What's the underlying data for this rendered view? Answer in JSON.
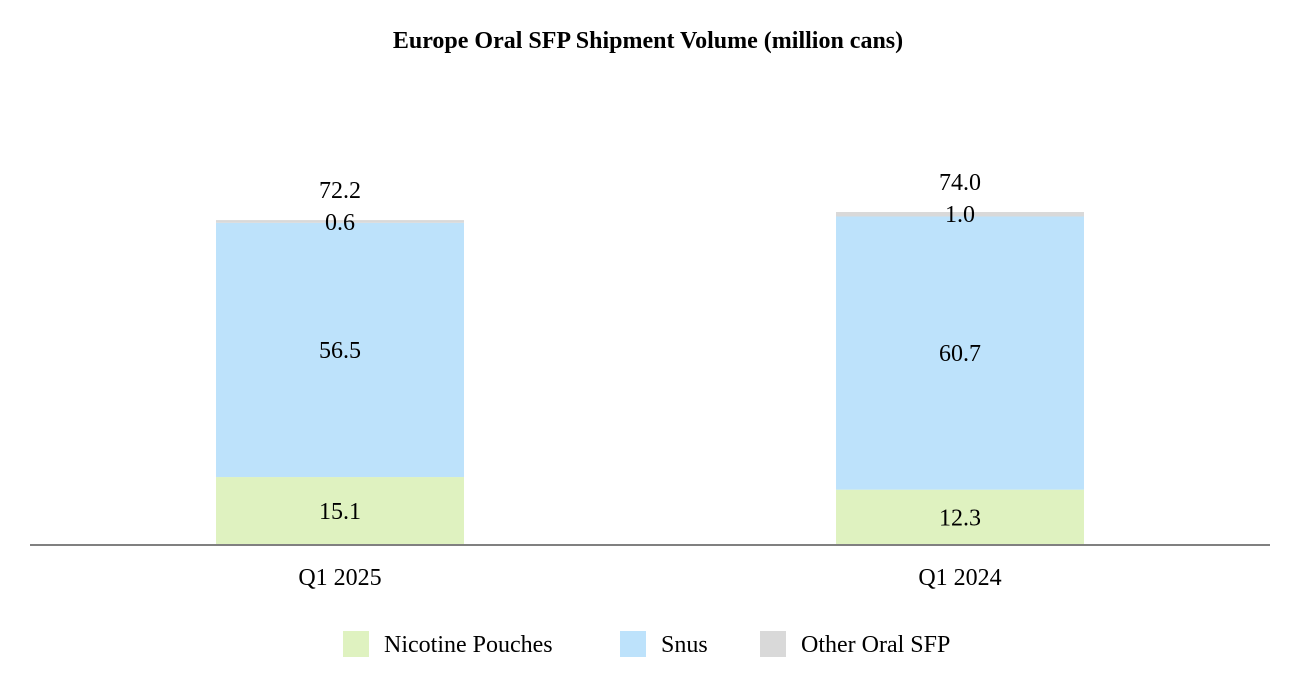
{
  "chart_data": {
    "type": "bar",
    "stacked": true,
    "title": "Europe Oral SFP Shipment Volume (million cans)",
    "xlabel": "",
    "ylabel": "",
    "ylim": [
      0,
      100
    ],
    "grid": false,
    "legend_position": "bottom",
    "categories": [
      "Q1 2025",
      "Q1 2024"
    ],
    "totals": [
      "72.2",
      "74.0"
    ],
    "series": [
      {
        "name": "Nicotine Pouches",
        "color": "#dff2c0",
        "values": [
          15.1,
          12.3
        ],
        "labels": [
          "15.1",
          "12.3"
        ]
      },
      {
        "name": "Snus",
        "color": "#bde2fb",
        "values": [
          56.5,
          60.7
        ],
        "labels": [
          "56.5",
          "60.7"
        ]
      },
      {
        "name": "Other Oral SFP",
        "color": "#d9d9d9",
        "values": [
          0.6,
          1.0
        ],
        "labels": [
          "0.6",
          "1.0"
        ]
      }
    ],
    "axis_color": "#808080"
  }
}
